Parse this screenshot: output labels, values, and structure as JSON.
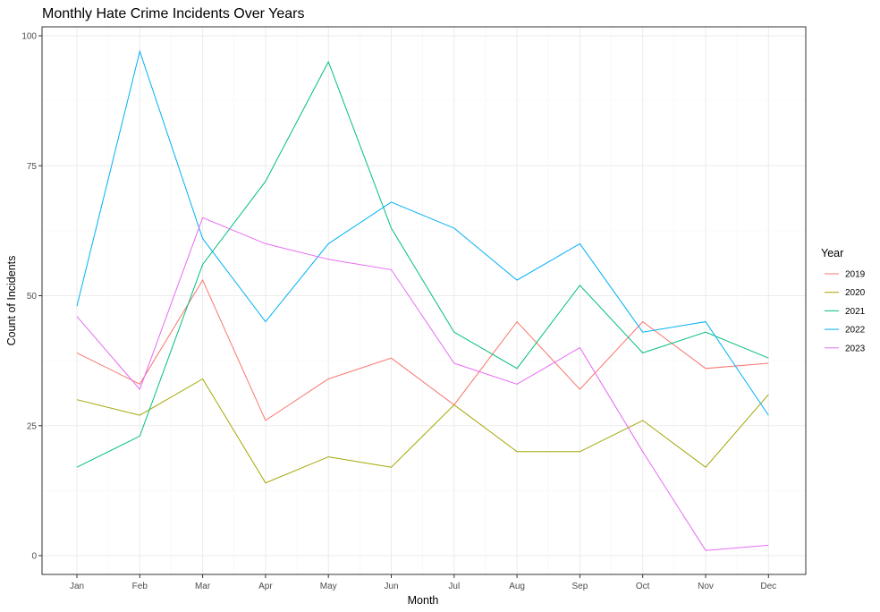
{
  "chart_data": {
    "type": "line",
    "title": "Monthly Hate Crime Incidents Over Years",
    "xlabel": "Month",
    "ylabel": "Count of Incidents",
    "categories": [
      "Jan",
      "Feb",
      "Mar",
      "Apr",
      "May",
      "Jun",
      "Jul",
      "Aug",
      "Sep",
      "Oct",
      "Nov",
      "Dec"
    ],
    "ylim": [
      0,
      100
    ],
    "yticks": [
      0,
      25,
      50,
      75,
      100
    ],
    "grid": true,
    "legend": {
      "title": "Year",
      "position": "right"
    },
    "series": [
      {
        "name": "2019",
        "color": "#F8766D",
        "values": [
          39,
          33,
          53,
          26,
          34,
          38,
          29,
          45,
          32,
          45,
          36,
          37
        ]
      },
      {
        "name": "2020",
        "color": "#A3A500",
        "values": [
          30,
          27,
          34,
          14,
          19,
          17,
          29,
          20,
          20,
          26,
          17,
          31
        ]
      },
      {
        "name": "2021",
        "color": "#00BF7D",
        "values": [
          17,
          23,
          56,
          72,
          95,
          63,
          43,
          36,
          52,
          39,
          43,
          38
        ]
      },
      {
        "name": "2022",
        "color": "#00B0F6",
        "values": [
          48,
          97,
          61,
          45,
          60,
          68,
          63,
          53,
          60,
          43,
          45,
          27
        ]
      },
      {
        "name": "2023",
        "color": "#E76BF3",
        "values": [
          46,
          32,
          65,
          60,
          57,
          55,
          37,
          33,
          40,
          20,
          1,
          2
        ]
      }
    ]
  }
}
